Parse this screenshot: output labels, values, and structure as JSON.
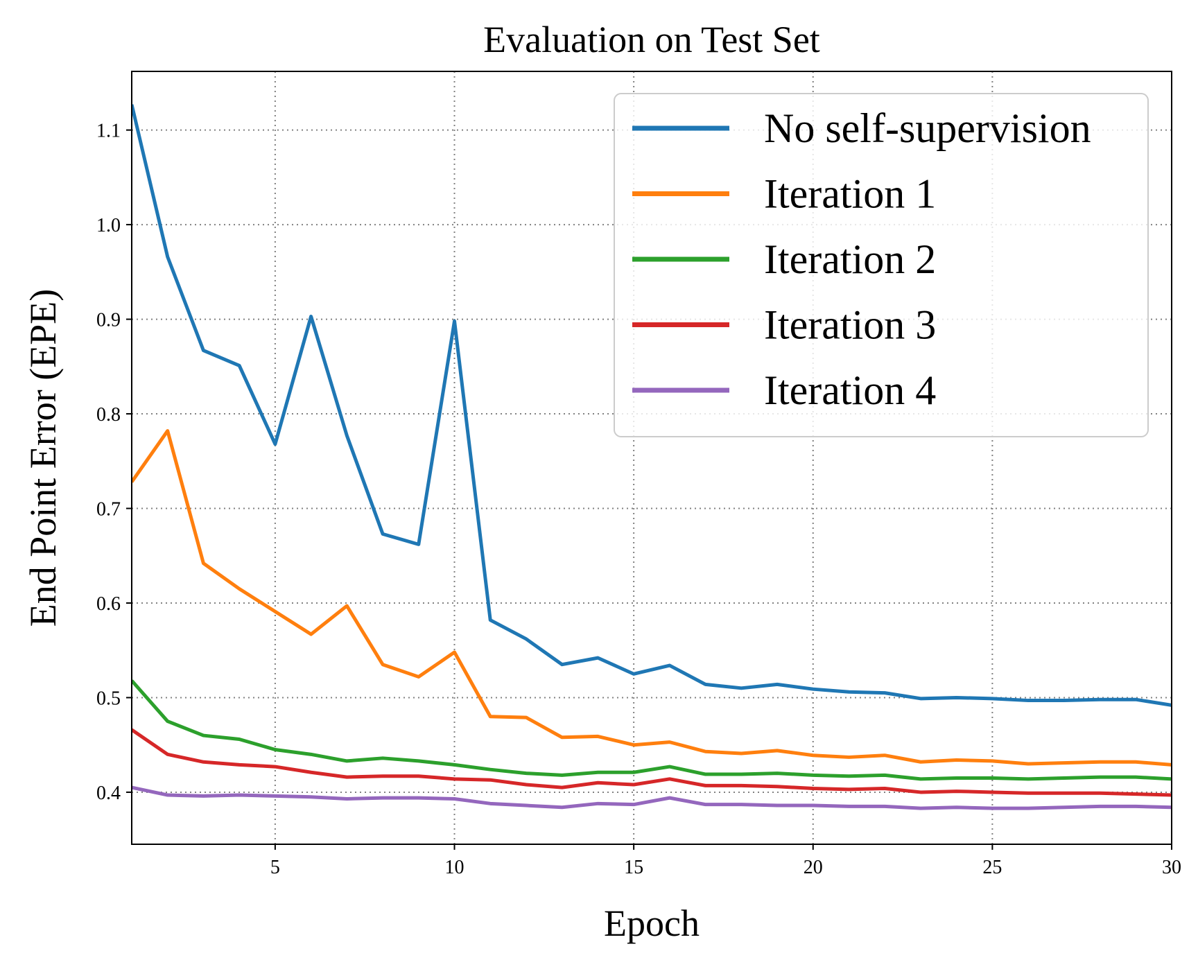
{
  "chart_data": {
    "type": "line",
    "title": "Evaluation on Test Set",
    "xlabel": "Epoch",
    "ylabel": "End Point Error (EPE)",
    "xlim": [
      1,
      30
    ],
    "ylim": [
      0.345,
      1.162
    ],
    "xticks": [
      5,
      10,
      15,
      20,
      25,
      30
    ],
    "yticks": [
      0.4,
      0.5,
      0.6,
      0.7,
      0.8,
      0.9,
      1.0,
      1.1
    ],
    "ytick_labels": [
      "0.4",
      "0.5",
      "0.6",
      "0.7",
      "0.8",
      "0.9",
      "1.0",
      "1.1"
    ],
    "grid": true,
    "legend_position": "top-right",
    "x": [
      1,
      2,
      3,
      4,
      5,
      6,
      7,
      8,
      9,
      10,
      11,
      12,
      13,
      14,
      15,
      16,
      17,
      18,
      19,
      20,
      21,
      22,
      23,
      24,
      25,
      26,
      27,
      28,
      29,
      30
    ],
    "series": [
      {
        "name": "No self-supervision",
        "color": "#1f77b4",
        "values": [
          1.127,
          0.966,
          0.867,
          0.851,
          0.768,
          0.903,
          0.777,
          0.673,
          0.662,
          0.898,
          0.582,
          0.562,
          0.535,
          0.542,
          0.525,
          0.534,
          0.514,
          0.51,
          0.514,
          0.509,
          0.506,
          0.505,
          0.499,
          0.5,
          0.499,
          0.497,
          0.497,
          0.498,
          0.498,
          0.492
        ]
      },
      {
        "name": "Iteration 1",
        "color": "#ff7f0e",
        "values": [
          0.728,
          0.782,
          0.642,
          0.615,
          0.591,
          0.567,
          0.597,
          0.535,
          0.522,
          0.548,
          0.48,
          0.479,
          0.458,
          0.459,
          0.45,
          0.453,
          0.443,
          0.441,
          0.444,
          0.439,
          0.437,
          0.439,
          0.432,
          0.434,
          0.433,
          0.43,
          0.431,
          0.432,
          0.432,
          0.429
        ]
      },
      {
        "name": "Iteration 2",
        "color": "#2ca02c",
        "values": [
          0.518,
          0.475,
          0.46,
          0.456,
          0.445,
          0.44,
          0.433,
          0.436,
          0.433,
          0.429,
          0.424,
          0.42,
          0.418,
          0.421,
          0.421,
          0.427,
          0.419,
          0.419,
          0.42,
          0.418,
          0.417,
          0.418,
          0.414,
          0.415,
          0.415,
          0.414,
          0.415,
          0.416,
          0.416,
          0.414
        ]
      },
      {
        "name": "Iteration 3",
        "color": "#d62728",
        "values": [
          0.466,
          0.44,
          0.432,
          0.429,
          0.427,
          0.421,
          0.416,
          0.417,
          0.417,
          0.414,
          0.413,
          0.408,
          0.405,
          0.41,
          0.408,
          0.414,
          0.407,
          0.407,
          0.406,
          0.404,
          0.403,
          0.404,
          0.4,
          0.401,
          0.4,
          0.399,
          0.399,
          0.399,
          0.398,
          0.397
        ]
      },
      {
        "name": "Iteration 4",
        "color": "#9467bd",
        "values": [
          0.405,
          0.397,
          0.396,
          0.397,
          0.396,
          0.395,
          0.393,
          0.394,
          0.394,
          0.393,
          0.388,
          0.386,
          0.384,
          0.388,
          0.387,
          0.394,
          0.387,
          0.387,
          0.386,
          0.386,
          0.385,
          0.385,
          0.383,
          0.384,
          0.383,
          0.383,
          0.384,
          0.385,
          0.385,
          0.384
        ]
      }
    ]
  }
}
